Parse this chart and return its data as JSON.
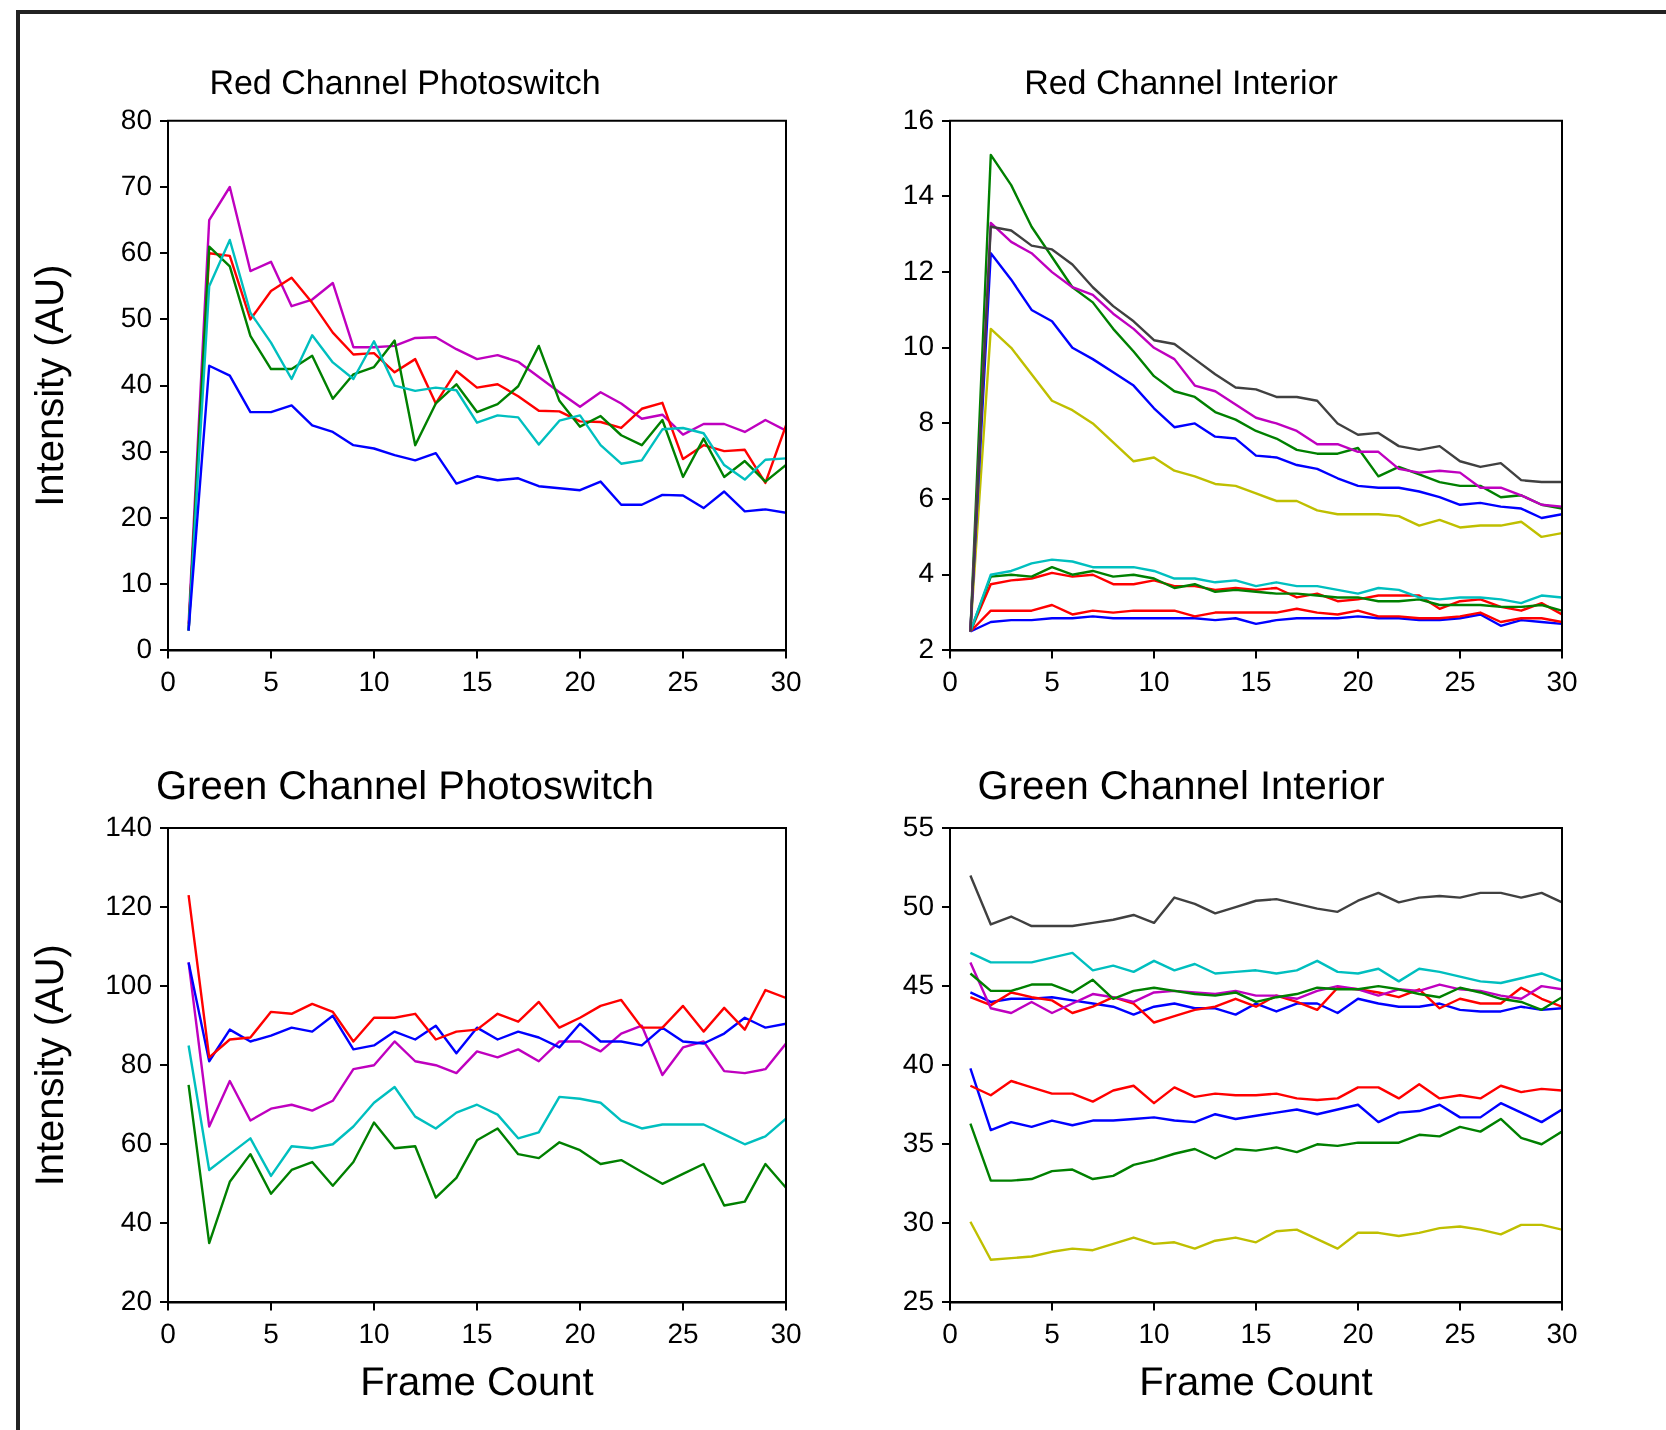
{
  "chart_data": [
    {
      "type": "line",
      "title": "Red Channel Photoswitch",
      "ylabel": "Intensity (AU)",
      "x": [
        1,
        2,
        3,
        4,
        5,
        6,
        7,
        8,
        9,
        10,
        11,
        12,
        13,
        14,
        15,
        16,
        17,
        18,
        19,
        20,
        21,
        22,
        23,
        24,
        25,
        26,
        27,
        28,
        29,
        30
      ],
      "xlim": [
        0,
        30
      ],
      "xticks": [
        0,
        5,
        10,
        15,
        20,
        25,
        30
      ],
      "ylim": [
        0,
        80
      ],
      "yticks": [
        0,
        10,
        20,
        30,
        40,
        50,
        60,
        70,
        80
      ],
      "grid": false,
      "legend": false,
      "marker": "none",
      "line_style": "solid",
      "series": [
        {
          "color": "#0000ff",
          "values": [
            3,
            43,
            41.5,
            36,
            36,
            37,
            34,
            33,
            31,
            30.5,
            29.5,
            28.7,
            29.8,
            25.2,
            26.3,
            25.7,
            26,
            24.8,
            24.5,
            24.2,
            25.5,
            22,
            22,
            23.5,
            23.4,
            21.5,
            24,
            21,
            21.3,
            20.8
          ]
        },
        {
          "color": "#00bfbf",
          "values": [
            3,
            55,
            62,
            51,
            46.5,
            41,
            47.6,
            43.5,
            41,
            46.7,
            40,
            39.2,
            39.7,
            39.3,
            34.4,
            35.5,
            35.2,
            31.1,
            34.7,
            35.5,
            31,
            28.2,
            28.7,
            33.4,
            33.6,
            32.8,
            28,
            25.8,
            28.8,
            29
          ]
        },
        {
          "color": "#008000",
          "values": [
            3,
            61,
            58,
            47.5,
            42.5,
            42.5,
            44.5,
            38,
            41.7,
            42.8,
            46.8,
            31,
            37.3,
            40.2,
            36,
            37.2,
            39.9,
            46,
            37.7,
            33.8,
            35.4,
            32.5,
            31,
            34.8,
            26.2,
            32,
            26.2,
            28.6,
            25.5,
            28
          ]
        },
        {
          "color": "#ff0000",
          "values": [
            3,
            60,
            59.6,
            50,
            54.3,
            56.3,
            52.5,
            48,
            44.7,
            44.9,
            42,
            44,
            37.3,
            42.2,
            39.7,
            40.2,
            38.4,
            36.2,
            36.1,
            34.6,
            34.5,
            33.6,
            36.5,
            37.4,
            28.9,
            31,
            30.1,
            30.3,
            25.3,
            34
          ]
        },
        {
          "color": "#bf00bf",
          "values": [
            4,
            65,
            70,
            57.3,
            58.7,
            52,
            53,
            55.5,
            45.8,
            45.8,
            46,
            47.2,
            47.3,
            45.5,
            44,
            44.6,
            43.6,
            41.3,
            39,
            36.8,
            39,
            37.3,
            35,
            35.6,
            32.6,
            34.2,
            34.2,
            33,
            34.8,
            33.2
          ]
        }
      ]
    },
    {
      "type": "line",
      "title": "Red Channel Interior",
      "x": [
        1,
        2,
        3,
        4,
        5,
        6,
        7,
        8,
        9,
        10,
        11,
        12,
        13,
        14,
        15,
        16,
        17,
        18,
        19,
        20,
        21,
        22,
        23,
        24,
        25,
        26,
        27,
        28,
        29,
        30
      ],
      "xlim": [
        0,
        30
      ],
      "xticks": [
        0,
        5,
        10,
        15,
        20,
        25,
        30
      ],
      "ylim": [
        2,
        16
      ],
      "yticks": [
        2,
        4,
        6,
        8,
        10,
        12,
        14,
        16
      ],
      "grid": false,
      "legend": false,
      "marker": "none",
      "line_style": "solid",
      "series": [
        {
          "color": "#404040",
          "values": [
            2.5,
            13.2,
            13.1,
            12.7,
            12.6,
            12.2,
            11.6,
            11.1,
            10.7,
            10.2,
            10.1,
            9.7,
            9.3,
            8.95,
            8.9,
            8.7,
            8.7,
            8.6,
            8,
            7.7,
            7.75,
            7.4,
            7.3,
            7.4,
            7,
            6.85,
            6.95,
            6.5,
            6.45,
            6.45
          ]
        },
        {
          "color": "#bf00bf",
          "values": [
            2.5,
            13.3,
            12.8,
            12.5,
            12,
            11.6,
            11.4,
            10.9,
            10.5,
            10,
            9.7,
            9,
            8.85,
            8.5,
            8.15,
            8,
            7.8,
            7.45,
            7.45,
            7.25,
            7.25,
            6.8,
            6.7,
            6.75,
            6.7,
            6.3,
            6.3,
            6.1,
            5.85,
            5.8
          ]
        },
        {
          "color": "#008000",
          "values": [
            2.5,
            15.1,
            14.3,
            13.2,
            12.4,
            11.6,
            11.2,
            10.5,
            9.9,
            9.25,
            8.85,
            8.7,
            8.3,
            8.1,
            7.8,
            7.6,
            7.3,
            7.2,
            7.2,
            7.35,
            6.6,
            6.85,
            6.65,
            6.45,
            6.35,
            6.35,
            6.05,
            6.1,
            5.85,
            5.75
          ]
        },
        {
          "color": "#0000ff",
          "values": [
            2.5,
            12.5,
            11.8,
            11,
            10.7,
            10,
            9.7,
            9.35,
            9,
            8.4,
            7.9,
            8,
            7.65,
            7.6,
            7.15,
            7.1,
            6.9,
            6.8,
            6.55,
            6.35,
            6.3,
            6.3,
            6.2,
            6.05,
            5.85,
            5.9,
            5.8,
            5.75,
            5.5,
            5.6
          ]
        },
        {
          "color": "#bfbf00",
          "values": [
            2.5,
            10.5,
            10,
            9.3,
            8.6,
            8.35,
            8,
            7.5,
            7,
            7.1,
            6.75,
            6.6,
            6.4,
            6.35,
            6.15,
            5.95,
            5.95,
            5.7,
            5.6,
            5.6,
            5.6,
            5.55,
            5.3,
            5.45,
            5.25,
            5.3,
            5.3,
            5.4,
            5,
            5.1
          ]
        },
        {
          "color": "#00bfbf",
          "values": [
            2.5,
            4,
            4.1,
            4.3,
            4.4,
            4.35,
            4.2,
            4.2,
            4.2,
            4.1,
            3.9,
            3.9,
            3.8,
            3.85,
            3.7,
            3.8,
            3.7,
            3.7,
            3.6,
            3.5,
            3.65,
            3.6,
            3.4,
            3.35,
            3.4,
            3.4,
            3.35,
            3.25,
            3.45,
            3.4
          ]
        },
        {
          "color": "#008000",
          "values": [
            2.5,
            3.95,
            4,
            3.95,
            4.2,
            4,
            4.1,
            3.95,
            4,
            3.9,
            3.65,
            3.75,
            3.55,
            3.6,
            3.55,
            3.5,
            3.5,
            3.45,
            3.4,
            3.4,
            3.3,
            3.3,
            3.35,
            3.2,
            3.2,
            3.2,
            3.15,
            3.15,
            3.2,
            3.05
          ]
        },
        {
          "color": "#ff0000",
          "values": [
            2.5,
            3.75,
            3.85,
            3.9,
            4.05,
            3.95,
            4,
            3.75,
            3.75,
            3.85,
            3.7,
            3.7,
            3.6,
            3.65,
            3.6,
            3.65,
            3.4,
            3.5,
            3.3,
            3.35,
            3.45,
            3.45,
            3.45,
            3.1,
            3.3,
            3.35,
            3.15,
            3.05,
            3.25,
            2.95
          ]
        },
        {
          "color": "#ff0000",
          "values": [
            2.5,
            3.05,
            3.05,
            3.05,
            3.2,
            2.95,
            3.05,
            3,
            3.05,
            3.05,
            3.05,
            2.9,
            3,
            3,
            3,
            3,
            3.1,
            3,
            2.95,
            3.05,
            2.9,
            2.9,
            2.85,
            2.85,
            2.9,
            3,
            2.75,
            2.85,
            2.85,
            2.75
          ]
        },
        {
          "color": "#0000ff",
          "values": [
            2.5,
            2.75,
            2.8,
            2.8,
            2.85,
            2.85,
            2.9,
            2.85,
            2.85,
            2.85,
            2.85,
            2.85,
            2.8,
            2.85,
            2.7,
            2.8,
            2.85,
            2.85,
            2.85,
            2.9,
            2.85,
            2.85,
            2.8,
            2.8,
            2.85,
            2.95,
            2.65,
            2.8,
            2.75,
            2.7
          ]
        }
      ]
    },
    {
      "type": "line",
      "title": "Green Channel Photoswitch",
      "xlabel": "Frame Count",
      "ylabel": "Intensity (AU)",
      "x": [
        1,
        2,
        3,
        4,
        5,
        6,
        7,
        8,
        9,
        10,
        11,
        12,
        13,
        14,
        15,
        16,
        17,
        18,
        19,
        20,
        21,
        22,
        23,
        24,
        25,
        26,
        27,
        28,
        29,
        30
      ],
      "xlim": [
        0,
        30
      ],
      "xticks": [
        0,
        5,
        10,
        15,
        20,
        25,
        30
      ],
      "ylim": [
        20,
        140
      ],
      "yticks": [
        20,
        40,
        60,
        80,
        100,
        120,
        140
      ],
      "grid": false,
      "legend": false,
      "marker": "none",
      "line_style": "solid",
      "series": [
        {
          "color": "#ff0000",
          "values": [
            123,
            82,
            86.5,
            87,
            93.5,
            93,
            95.5,
            93.5,
            86,
            92,
            92,
            93,
            86.5,
            88.5,
            89,
            93,
            91,
            96,
            89.5,
            92,
            95,
            96.5,
            89.5,
            89.5,
            95,
            88.5,
            94.5,
            89,
            99,
            97
          ]
        },
        {
          "color": "#0000ff",
          "values": [
            106,
            81,
            89,
            86,
            87.5,
            89.5,
            88.5,
            92.5,
            84,
            85,
            88.5,
            86.5,
            90,
            83,
            89.5,
            86.5,
            88.5,
            87,
            84.5,
            90.5,
            86,
            86,
            85,
            89.5,
            86,
            85.5,
            88,
            92,
            89.5,
            90.5
          ]
        },
        {
          "color": "#bf00bf",
          "values": [
            106,
            64.5,
            76,
            66,
            69,
            70,
            68.5,
            71,
            79,
            80,
            86,
            81,
            80,
            78,
            83.5,
            82,
            84,
            81,
            86,
            86,
            83.5,
            88,
            90,
            77.5,
            84.5,
            86,
            78.5,
            78,
            79,
            85.5
          ]
        },
        {
          "color": "#00bfbf",
          "values": [
            85,
            53.5,
            57.5,
            61.5,
            52,
            59.5,
            59,
            60,
            64.5,
            70.5,
            74.5,
            67,
            64,
            68,
            70,
            67.5,
            61.5,
            63,
            72,
            71.5,
            70.5,
            66,
            64,
            65,
            65,
            65,
            62.5,
            60,
            62,
            66.5
          ]
        },
        {
          "color": "#008000",
          "values": [
            75,
            35,
            50.5,
            57.5,
            47.5,
            53.5,
            55.5,
            49.5,
            55.5,
            65.5,
            59,
            59.5,
            46.5,
            51.5,
            61,
            64,
            57.5,
            56.5,
            60.5,
            58.5,
            55,
            56,
            53,
            50,
            52.5,
            55,
            44.5,
            45.5,
            55,
            49
          ]
        }
      ]
    },
    {
      "type": "line",
      "title": "Green Channel Interior",
      "xlabel": "Frame Count",
      "x": [
        1,
        2,
        3,
        4,
        5,
        6,
        7,
        8,
        9,
        10,
        11,
        12,
        13,
        14,
        15,
        16,
        17,
        18,
        19,
        20,
        21,
        22,
        23,
        24,
        25,
        26,
        27,
        28,
        29,
        30
      ],
      "xlim": [
        0,
        30
      ],
      "xticks": [
        0,
        5,
        10,
        15,
        20,
        25,
        30
      ],
      "ylim": [
        25,
        55
      ],
      "yticks": [
        25,
        30,
        35,
        40,
        45,
        50,
        55
      ],
      "grid": false,
      "legend": false,
      "marker": "none",
      "line_style": "solid",
      "series": [
        {
          "color": "#404040",
          "values": [
            52,
            48.9,
            49.4,
            48.8,
            48.8,
            48.8,
            49,
            49.2,
            49.5,
            49,
            50.6,
            50.2,
            49.6,
            50,
            50.4,
            50.5,
            50.2,
            49.9,
            49.7,
            50.4,
            50.9,
            50.3,
            50.6,
            50.7,
            50.6,
            50.9,
            50.9,
            50.6,
            50.9,
            50.3
          ]
        },
        {
          "color": "#00bfbf",
          "values": [
            47.1,
            46.5,
            46.5,
            46.5,
            46.8,
            47.1,
            46,
            46.3,
            45.9,
            46.6,
            46,
            46.4,
            45.8,
            45.9,
            46,
            45.8,
            46,
            46.6,
            45.9,
            45.8,
            46.1,
            45.3,
            46.1,
            45.9,
            45.6,
            45.3,
            45.2,
            45.5,
            45.8,
            45.3
          ]
        },
        {
          "color": "#008000",
          "values": [
            45.8,
            44.7,
            44.7,
            45.1,
            45.1,
            44.6,
            45.4,
            44.2,
            44.7,
            44.9,
            44.7,
            44.5,
            44.4,
            44.6,
            44,
            44.3,
            44.5,
            44.9,
            44.8,
            44.8,
            45,
            44.8,
            44.5,
            44.3,
            44.9,
            44.6,
            44.2,
            44,
            43.5,
            44.3
          ]
        },
        {
          "color": "#bf00bf",
          "values": [
            46.5,
            43.6,
            43.3,
            44,
            43.3,
            43.9,
            44.5,
            44.3,
            44,
            44.6,
            44.7,
            44.6,
            44.5,
            44.7,
            44.4,
            44.4,
            44.2,
            44.7,
            45,
            44.8,
            44.4,
            44.8,
            44.7,
            45.1,
            44.8,
            44.7,
            44.4,
            44.2,
            45,
            44.8
          ]
        },
        {
          "color": "#ff0000",
          "values": [
            44.3,
            43.8,
            44.6,
            44.3,
            44.1,
            43.3,
            43.7,
            44.3,
            43.9,
            42.7,
            43.1,
            43.5,
            43.7,
            44.2,
            43.7,
            44.4,
            44,
            43.5,
            44.9,
            44.8,
            44.6,
            44.3,
            44.8,
            43.6,
            44.2,
            43.9,
            43.9,
            44.9,
            44.2,
            43.7
          ]
        },
        {
          "color": "#0000ff",
          "values": [
            44.6,
            44,
            44.2,
            44.2,
            44.3,
            44.1,
            43.9,
            43.7,
            43.2,
            43.7,
            43.9,
            43.6,
            43.6,
            43.2,
            43.9,
            43.4,
            43.9,
            43.9,
            43.3,
            44.2,
            43.9,
            43.7,
            43.7,
            43.9,
            43.5,
            43.4,
            43.4,
            43.7,
            43.5,
            43.6
          ]
        },
        {
          "color": "#ff0000",
          "values": [
            38.7,
            38.1,
            39,
            38.6,
            38.2,
            38.2,
            37.7,
            38.4,
            38.7,
            37.6,
            38.6,
            38,
            38.2,
            38.1,
            38.1,
            38.2,
            37.9,
            37.8,
            37.9,
            38.6,
            38.6,
            37.9,
            38.8,
            37.9,
            38.1,
            37.9,
            38.7,
            38.3,
            38.5,
            38.4
          ]
        },
        {
          "color": "#0000ff",
          "values": [
            39.8,
            35.9,
            36.4,
            36.1,
            36.5,
            36.2,
            36.5,
            36.5,
            36.6,
            36.7,
            36.5,
            36.4,
            36.9,
            36.6,
            36.8,
            37,
            37.2,
            36.9,
            37.2,
            37.5,
            36.4,
            37,
            37.1,
            37.5,
            36.7,
            36.7,
            37.6,
            37,
            36.4,
            37.2
          ]
        },
        {
          "color": "#008000",
          "values": [
            36.3,
            32.7,
            32.7,
            32.8,
            33.3,
            33.4,
            32.8,
            33,
            33.7,
            34,
            34.4,
            34.7,
            34.1,
            34.7,
            34.6,
            34.8,
            34.5,
            35,
            34.9,
            35.1,
            35.1,
            35.1,
            35.6,
            35.5,
            36.1,
            35.8,
            36.6,
            35.4,
            35,
            35.8
          ]
        },
        {
          "color": "#bfbf00",
          "values": [
            30.1,
            27.7,
            27.8,
            27.9,
            28.2,
            28.4,
            28.3,
            28.7,
            29.1,
            28.7,
            28.8,
            28.4,
            28.9,
            29.1,
            28.8,
            29.5,
            29.6,
            29,
            28.4,
            29.4,
            29.4,
            29.2,
            29.4,
            29.7,
            29.8,
            29.6,
            29.3,
            29.9,
            29.9,
            29.6
          ]
        }
      ]
    }
  ]
}
